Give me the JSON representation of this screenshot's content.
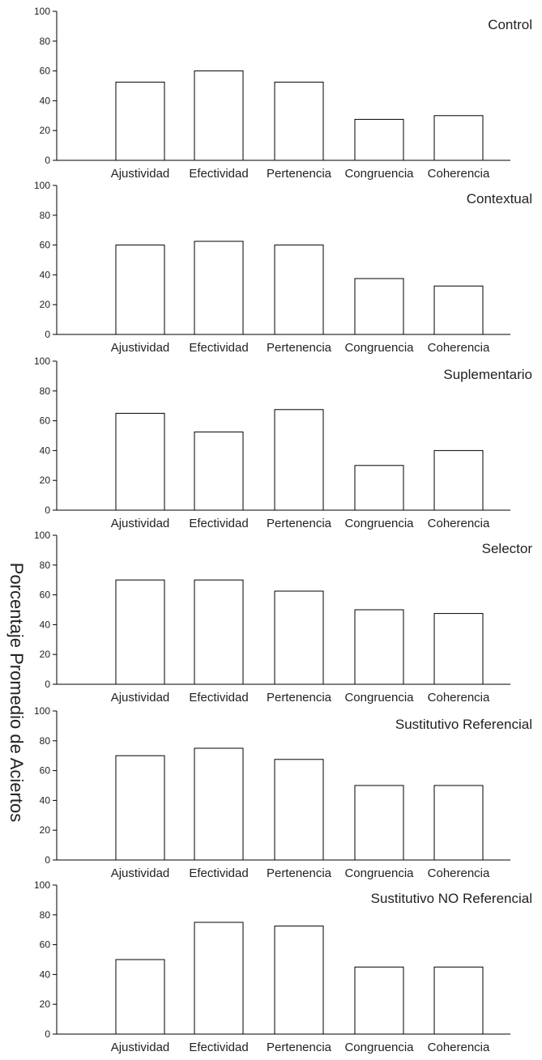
{
  "figure": {
    "ylabel": "Porcentaje Promedio de Aciertos"
  },
  "chart_data": [
    {
      "type": "bar",
      "title": "Control",
      "categories": [
        "Ajustividad",
        "Efectividad",
        "Pertenencia",
        "Congruencia",
        "Coherencia"
      ],
      "values": [
        52.5,
        60,
        52.5,
        27.5,
        30
      ],
      "ylim": [
        0,
        100
      ],
      "yticks": [
        0,
        20,
        40,
        60,
        80,
        100
      ],
      "grid": false
    },
    {
      "type": "bar",
      "title": "Contextual",
      "categories": [
        "Ajustividad",
        "Efectividad",
        "Pertenencia",
        "Congruencia",
        "Coherencia"
      ],
      "values": [
        60,
        62.5,
        60,
        37.5,
        32.5
      ],
      "ylim": [
        0,
        100
      ],
      "yticks": [
        0,
        20,
        40,
        60,
        80,
        100
      ],
      "grid": false
    },
    {
      "type": "bar",
      "title": "Suplementario",
      "categories": [
        "Ajustividad",
        "Efectividad",
        "Pertenencia",
        "Congruencia",
        "Coherencia"
      ],
      "values": [
        65,
        52.5,
        67.5,
        30,
        40
      ],
      "ylim": [
        0,
        100
      ],
      "yticks": [
        0,
        20,
        40,
        60,
        80,
        100
      ],
      "grid": false
    },
    {
      "type": "bar",
      "title": "Selector",
      "categories": [
        "Ajustividad",
        "Efectividad",
        "Pertenencia",
        "Congruencia",
        "Coherencia"
      ],
      "values": [
        70,
        70,
        62.5,
        50,
        47.5
      ],
      "ylim": [
        0,
        100
      ],
      "yticks": [
        0,
        20,
        40,
        60,
        80,
        100
      ],
      "grid": false
    },
    {
      "type": "bar",
      "title": "Sustitutivo Referencial",
      "categories": [
        "Ajustividad",
        "Efectividad",
        "Pertenencia",
        "Congruencia",
        "Coherencia"
      ],
      "values": [
        70,
        75,
        67.5,
        50,
        50
      ],
      "ylim": [
        0,
        100
      ],
      "yticks": [
        0,
        20,
        40,
        60,
        80,
        100
      ],
      "grid": false
    },
    {
      "type": "bar",
      "title": "Sustitutivo NO Referencial",
      "categories": [
        "Ajustividad",
        "Efectividad",
        "Pertenencia",
        "Congruencia",
        "Coherencia"
      ],
      "values": [
        50,
        75,
        72.5,
        45,
        45
      ],
      "ylim": [
        0,
        100
      ],
      "yticks": [
        0,
        20,
        40,
        60,
        80,
        100
      ],
      "grid": false
    }
  ]
}
